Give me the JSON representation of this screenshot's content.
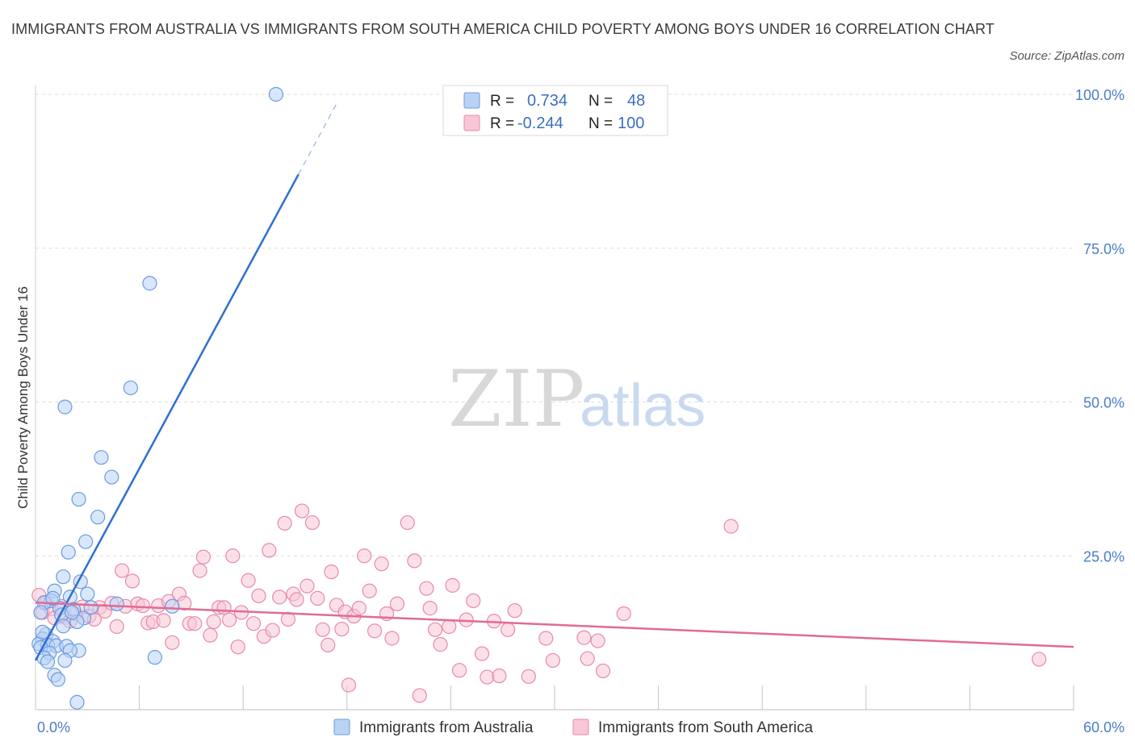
{
  "title": "IMMIGRANTS FROM AUSTRALIA VS IMMIGRANTS FROM SOUTH AMERICA CHILD POVERTY AMONG BOYS UNDER 16 CORRELATION CHART",
  "source": "Source: ZipAtlas.com",
  "watermark": {
    "zip": "ZIP",
    "atlas": "atlas"
  },
  "stats": {
    "r_label": "R =",
    "n_label": "N =",
    "australia": {
      "r": "0.734",
      "n": "48"
    },
    "south_america": {
      "r": "-0.244",
      "n": "100"
    }
  },
  "colors": {
    "australia_fill": "#b9d3f5",
    "australia_stroke": "#6b9be0",
    "australia_line": "#2f6fd0",
    "south_america_fill": "#f8c6d6",
    "south_america_stroke": "#e88aa8",
    "south_america_line": "#e06b95",
    "grid": "#dddddd",
    "axis_text": "#4a7cc9"
  },
  "chart_data": {
    "type": "scatter",
    "title": "IMMIGRANTS FROM AUSTRALIA VS IMMIGRANTS FROM SOUTH AMERICA CHILD POVERTY AMONG BOYS UNDER 16 CORRELATION CHART",
    "xlabel": "",
    "ylabel": "Child Poverty Among Boys Under 16",
    "xlim": [
      0,
      60
    ],
    "ylim": [
      0,
      100
    ],
    "x_tick_labels": [
      "0.0%",
      "60.0%"
    ],
    "y_ticks": [
      25,
      50,
      75,
      100
    ],
    "y_tick_labels": [
      "25.0%",
      "50.0%",
      "75.0%",
      "100.0%"
    ],
    "grid": true,
    "legend_position": "bottom",
    "series": [
      {
        "name": "Immigrants from Australia",
        "trend": {
          "x": [
            0,
            15.2
          ],
          "y": [
            8,
            87
          ],
          "dashed_extension": {
            "x": [
              15.2,
              17.5
            ],
            "y": [
              87,
              99
            ]
          }
        },
        "points": [
          [
            13.9,
            100
          ],
          [
            6.6,
            69.3
          ],
          [
            5.5,
            52.3
          ],
          [
            1.7,
            49.2
          ],
          [
            3.8,
            41.0
          ],
          [
            4.4,
            37.8
          ],
          [
            2.5,
            34.2
          ],
          [
            3.6,
            31.3
          ],
          [
            2.9,
            27.3
          ],
          [
            1.9,
            25.6
          ],
          [
            1.6,
            21.6
          ],
          [
            2.6,
            20.8
          ],
          [
            1.1,
            19.3
          ],
          [
            3.0,
            18.8
          ],
          [
            2.0,
            18.3
          ],
          [
            0.9,
            17.7
          ],
          [
            4.7,
            17.2
          ],
          [
            0.5,
            17.4
          ],
          [
            1.4,
            16.5
          ],
          [
            2.2,
            16.3
          ],
          [
            7.9,
            16.8
          ],
          [
            1.5,
            15.4
          ],
          [
            0.3,
            15.8
          ],
          [
            2.8,
            14.9
          ],
          [
            2.4,
            14.3
          ],
          [
            0.6,
            12.2
          ],
          [
            0.4,
            11.5
          ],
          [
            1.0,
            11.1
          ],
          [
            0.2,
            10.7
          ],
          [
            0.7,
            10.5
          ],
          [
            1.2,
            10.4
          ],
          [
            0.3,
            10.1
          ],
          [
            1.8,
            10.3
          ],
          [
            2.5,
            9.6
          ],
          [
            2.0,
            9.6
          ],
          [
            0.8,
            9.2
          ],
          [
            0.5,
            8.4
          ],
          [
            1.7,
            8.0
          ],
          [
            6.9,
            8.5
          ],
          [
            0.7,
            7.8
          ],
          [
            1.1,
            5.6
          ],
          [
            1.3,
            4.9
          ],
          [
            2.4,
            1.2
          ],
          [
            3.2,
            16.6
          ],
          [
            1.6,
            13.6
          ],
          [
            0.4,
            12.6
          ],
          [
            1.0,
            18.1
          ],
          [
            2.1,
            15.8
          ]
        ]
      },
      {
        "name": "Immigrants from South America",
        "trend": {
          "x": [
            0,
            60
          ],
          "y": [
            17.4,
            10.2
          ]
        },
        "points": [
          [
            0.2,
            18.6
          ],
          [
            0.4,
            15.8
          ],
          [
            0.6,
            17.4
          ],
          [
            0.9,
            16.4
          ],
          [
            1.1,
            14.9
          ],
          [
            1.5,
            16.8
          ],
          [
            1.7,
            15.0
          ],
          [
            2.0,
            14.4
          ],
          [
            2.3,
            15.6
          ],
          [
            2.7,
            16.7
          ],
          [
            3.1,
            15.2
          ],
          [
            3.4,
            14.7
          ],
          [
            3.7,
            16.6
          ],
          [
            4.0,
            16.0
          ],
          [
            4.4,
            17.3
          ],
          [
            4.7,
            13.5
          ],
          [
            5.0,
            22.6
          ],
          [
            5.2,
            16.8
          ],
          [
            5.6,
            20.9
          ],
          [
            5.9,
            17.2
          ],
          [
            6.2,
            16.9
          ],
          [
            6.5,
            14.1
          ],
          [
            6.8,
            14.3
          ],
          [
            7.1,
            16.9
          ],
          [
            7.4,
            14.5
          ],
          [
            7.7,
            17.6
          ],
          [
            7.9,
            10.9
          ],
          [
            8.3,
            18.8
          ],
          [
            8.6,
            17.3
          ],
          [
            8.9,
            14.0
          ],
          [
            9.2,
            14.0
          ],
          [
            9.5,
            22.6
          ],
          [
            9.7,
            24.8
          ],
          [
            10.1,
            12.1
          ],
          [
            10.3,
            14.3
          ],
          [
            10.6,
            16.6
          ],
          [
            10.9,
            16.6
          ],
          [
            11.2,
            14.6
          ],
          [
            11.4,
            25.0
          ],
          [
            11.7,
            10.2
          ],
          [
            11.9,
            15.8
          ],
          [
            12.3,
            21.0
          ],
          [
            12.6,
            14.0
          ],
          [
            12.9,
            18.5
          ],
          [
            13.2,
            11.9
          ],
          [
            13.5,
            25.9
          ],
          [
            13.7,
            12.9
          ],
          [
            14.1,
            18.3
          ],
          [
            14.4,
            30.3
          ],
          [
            14.6,
            14.7
          ],
          [
            14.9,
            18.8
          ],
          [
            15.1,
            17.9
          ],
          [
            15.4,
            32.3
          ],
          [
            15.7,
            20.1
          ],
          [
            16.0,
            30.4
          ],
          [
            16.3,
            18.1
          ],
          [
            16.6,
            13.0
          ],
          [
            16.9,
            10.5
          ],
          [
            17.1,
            22.4
          ],
          [
            17.4,
            17.0
          ],
          [
            17.7,
            13.1
          ],
          [
            17.9,
            15.9
          ],
          [
            18.1,
            4.0
          ],
          [
            18.4,
            15.2
          ],
          [
            18.7,
            16.5
          ],
          [
            19.0,
            25.0
          ],
          [
            19.3,
            19.3
          ],
          [
            19.6,
            12.8
          ],
          [
            20.0,
            23.7
          ],
          [
            20.3,
            15.6
          ],
          [
            20.6,
            11.6
          ],
          [
            20.9,
            17.2
          ],
          [
            21.5,
            30.4
          ],
          [
            21.9,
            24.2
          ],
          [
            22.2,
            2.3
          ],
          [
            22.6,
            19.7
          ],
          [
            22.8,
            16.5
          ],
          [
            23.1,
            13.0
          ],
          [
            23.4,
            10.6
          ],
          [
            23.9,
            13.5
          ],
          [
            24.1,
            20.2
          ],
          [
            24.5,
            6.4
          ],
          [
            24.9,
            14.6
          ],
          [
            25.3,
            17.7
          ],
          [
            25.8,
            9.1
          ],
          [
            26.1,
            5.3
          ],
          [
            26.5,
            14.4
          ],
          [
            26.8,
            5.5
          ],
          [
            27.3,
            13.0
          ],
          [
            27.7,
            16.1
          ],
          [
            28.5,
            5.4
          ],
          [
            29.5,
            11.6
          ],
          [
            29.9,
            8.0
          ],
          [
            31.7,
            11.7
          ],
          [
            31.9,
            8.3
          ],
          [
            32.5,
            11.2
          ],
          [
            32.8,
            6.3
          ],
          [
            34.0,
            15.6
          ],
          [
            40.2,
            29.8
          ],
          [
            58.0,
            8.2
          ]
        ]
      }
    ]
  },
  "legend": {
    "australia": "Immigrants from Australia",
    "south_america": "Immigrants from South America"
  }
}
